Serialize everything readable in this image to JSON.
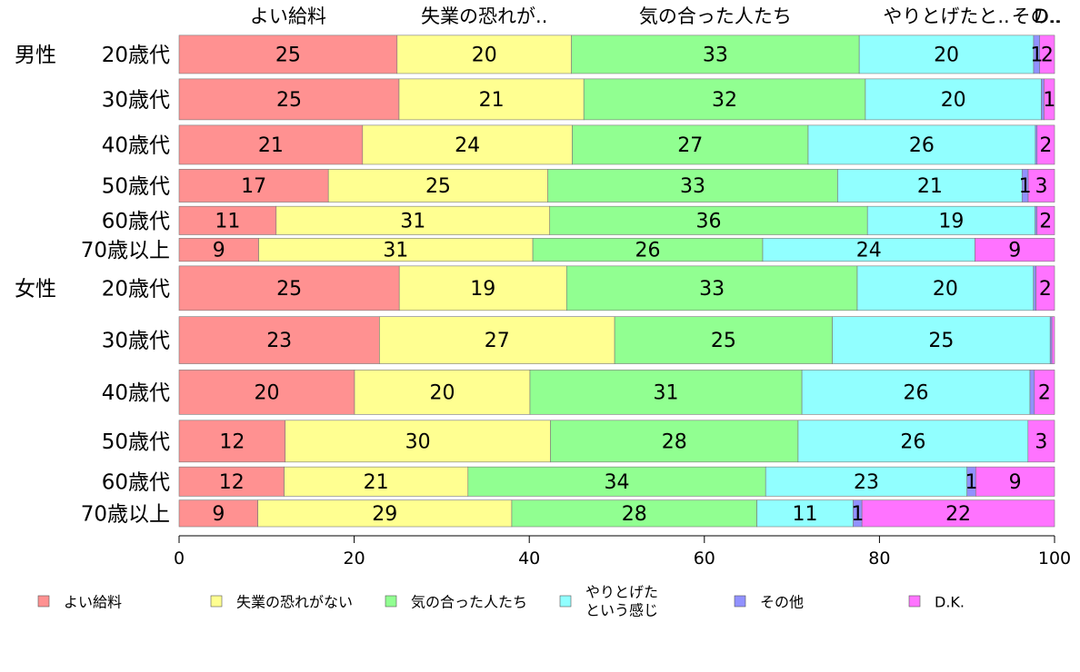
{
  "chart_data": {
    "type": "bar",
    "orientation": "horizontal",
    "stacked": true,
    "xlim": [
      0,
      100
    ],
    "x_ticks": [
      "0",
      "20",
      "40",
      "60",
      "80",
      "100"
    ],
    "grid": false,
    "legend_position": "bottom",
    "top_labels": [
      "よい給料",
      "失業の恐れが..",
      "気の合った人たち",
      "やりとげたと..",
      "その..",
      "D.."
    ],
    "group_labels": [
      "男性",
      "女性"
    ],
    "groups": [
      "男性",
      "男性",
      "男性",
      "男性",
      "男性",
      "男性",
      "女性",
      "女性",
      "女性",
      "女性",
      "女性",
      "女性"
    ],
    "categories": [
      "20歳代",
      "30歳代",
      "40歳代",
      "50歳代",
      "60歳代",
      "70歳以上",
      "20歳代",
      "30歳代",
      "40歳代",
      "50歳代",
      "60歳代",
      "70歳以上"
    ],
    "row_weights": [
      4.3,
      4.6,
      4.4,
      3.7,
      3.2,
      2.6,
      5.0,
      5.3,
      5.0,
      4.7,
      3.3,
      3.0
    ],
    "series": [
      {
        "name": "よい給料",
        "color": "#ff9191",
        "values": [
          25,
          25,
          21,
          17,
          11,
          9,
          25,
          23,
          20,
          12,
          12,
          9
        ]
      },
      {
        "name": "失業の恐れがない",
        "color": "#ffff91",
        "values": [
          20,
          21,
          24,
          25,
          31,
          31,
          19,
          27,
          20,
          30,
          21,
          29
        ]
      },
      {
        "name": "気の合った人たち",
        "color": "#91ff91",
        "values": [
          33,
          32,
          27,
          33,
          36,
          26,
          33,
          25,
          31,
          28,
          34,
          28
        ]
      },
      {
        "name": "やりとげたという感じ",
        "legend_lines": [
          "やりとげた",
          "という感じ"
        ],
        "color": "#91ffff",
        "values": [
          20,
          20,
          26,
          21,
          19,
          24,
          20,
          25,
          26,
          26,
          23,
          11
        ]
      },
      {
        "name": "その他",
        "color": "#9191ff",
        "values": [
          0.7,
          0.3,
          0.2,
          0.7,
          0.2,
          0,
          0.3,
          0.2,
          0.5,
          0,
          1,
          1
        ]
      },
      {
        "name": "D.K.",
        "color": "#ff73ff",
        "values": [
          1.7,
          1.2,
          2,
          3,
          2,
          9,
          2.1,
          0.3,
          2.3,
          3,
          9,
          22
        ]
      }
    ],
    "data_labels": [
      [
        "25",
        "20",
        "33",
        "20",
        "1",
        "2"
      ],
      [
        "25",
        "21",
        "32",
        "20",
        "",
        "1"
      ],
      [
        "21",
        "24",
        "27",
        "26",
        "",
        "2"
      ],
      [
        "17",
        "25",
        "33",
        "21",
        "1",
        "3"
      ],
      [
        "11",
        "31",
        "36",
        "19",
        "",
        "2"
      ],
      [
        "9",
        "31",
        "26",
        "24",
        "",
        "9"
      ],
      [
        "25",
        "19",
        "33",
        "20",
        "",
        "2"
      ],
      [
        "23",
        "27",
        "25",
        "25",
        "",
        ""
      ],
      [
        "20",
        "20",
        "31",
        "26",
        "",
        "2"
      ],
      [
        "12",
        "30",
        "28",
        "26",
        "",
        "3"
      ],
      [
        "12",
        "21",
        "34",
        "23",
        "1",
        "9"
      ],
      [
        "9",
        "29",
        "28",
        "11",
        "1",
        "22"
      ]
    ]
  }
}
